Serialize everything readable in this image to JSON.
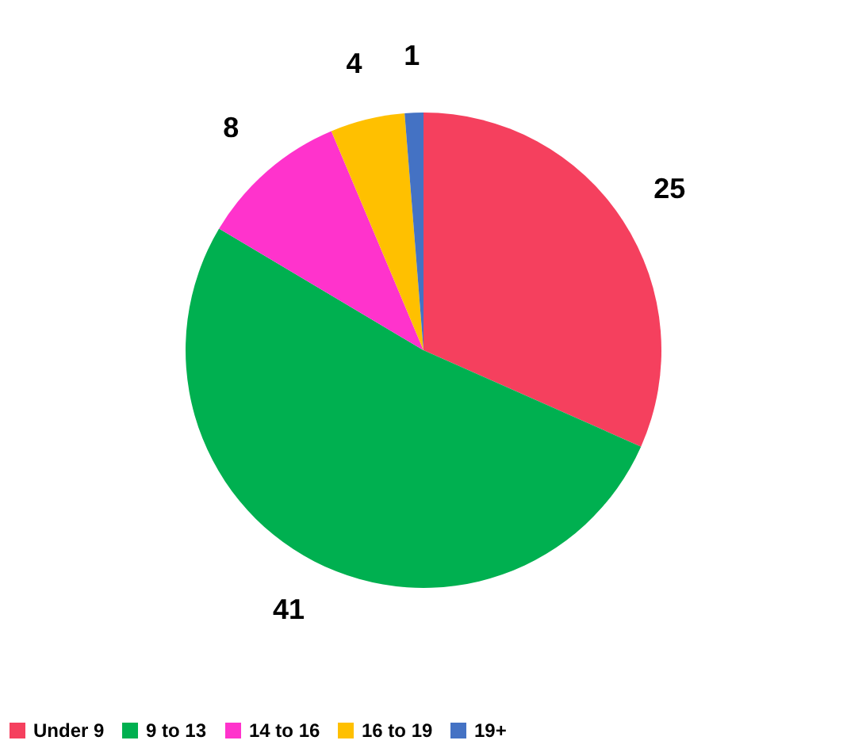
{
  "chart_data": {
    "type": "pie",
    "categories": [
      "Under 9",
      "9 to 13",
      "14 to 16",
      "16 to 19",
      "19+"
    ],
    "values": [
      25,
      41,
      8,
      4,
      1
    ],
    "colors": [
      "#f5405e",
      "#00b050",
      "#ff33cc",
      "#ffc000",
      "#4472c4"
    ],
    "data_labels": true,
    "legend": "bottom"
  }
}
